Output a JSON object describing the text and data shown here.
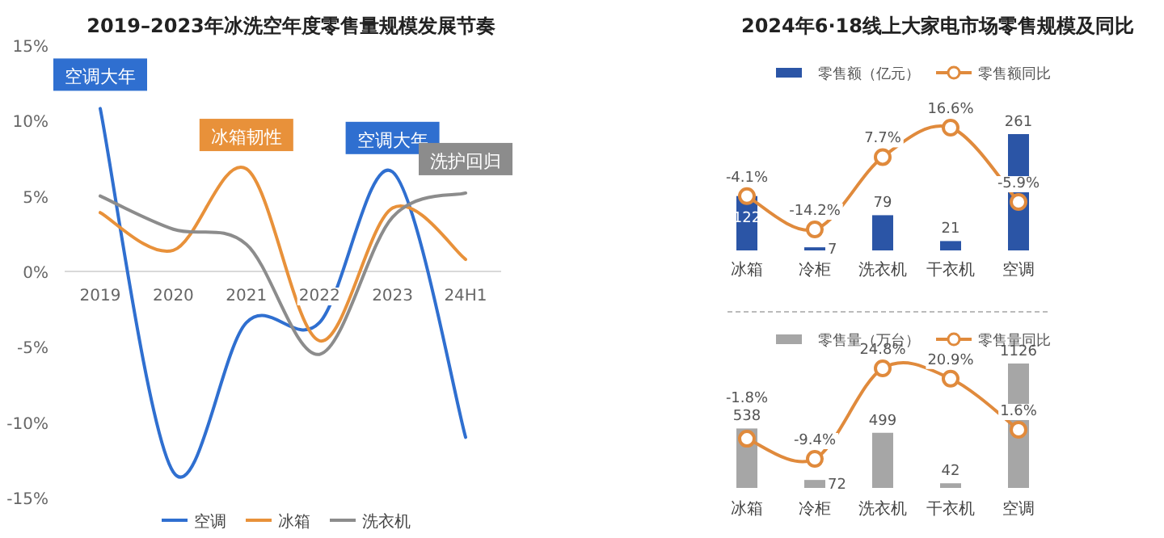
{
  "chart_data": [
    {
      "type": "line",
      "title": "2019–2023年冰洗空年度零售量规模发展节奏",
      "categories": [
        "2019",
        "2020",
        "2021",
        "2022",
        "2023",
        "24H1"
      ],
      "series": [
        {
          "name": "空调",
          "color": "#2f6fd0",
          "values": [
            10.8,
            -13.3,
            -3.4,
            -3.4,
            6.6,
            -11.0
          ]
        },
        {
          "name": "冰箱",
          "color": "#e8913a",
          "values": [
            3.9,
            1.4,
            6.8,
            -4.6,
            4.2,
            0.8
          ]
        },
        {
          "name": "洗衣机",
          "color": "#8c8c8c",
          "values": [
            5.0,
            2.8,
            1.8,
            -5.5,
            3.6,
            5.2
          ]
        }
      ],
      "ylim": [
        -15,
        15
      ],
      "yticks": [
        {
          "value": -15,
          "label": "-15%"
        },
        {
          "value": -10,
          "label": "-10%"
        },
        {
          "value": -5,
          "label": "-5%"
        },
        {
          "value": 0,
          "label": "0%"
        },
        {
          "value": 5,
          "label": "5%"
        },
        {
          "value": 10,
          "label": "10%"
        },
        {
          "value": 15,
          "label": "15%"
        }
      ],
      "legend": "bottom",
      "annotations": [
        {
          "text": "空调大年",
          "x": "2019",
          "y": 10.8
        },
        {
          "text": "冰箱韧性",
          "x": "2021",
          "y": 6.8
        },
        {
          "text": "空调大年",
          "x": "2023",
          "y": 6.6
        },
        {
          "text": "洗护回归",
          "x": "24H1",
          "y": 5.2
        }
      ]
    },
    {
      "type": "bar",
      "title": "2024年6·18线上大家电市场零售规模及同比",
      "categories": [
        "冰箱",
        "冷柜",
        "洗衣机",
        "干衣机",
        "空调"
      ],
      "series": [
        {
          "name": "零售额（亿元）",
          "color": "#2b55a6",
          "values": [
            122,
            7,
            79,
            21,
            261
          ]
        },
        {
          "name": "零售额同比",
          "type": "line",
          "axis": "y2",
          "marker": "circle",
          "color": "#e08a3c",
          "values": [
            -4.1,
            -14.2,
            7.7,
            16.6,
            -5.9
          ],
          "value_labels": [
            "-4.1%",
            "-14.2%",
            "7.7%",
            "16.6%",
            "-5.9%"
          ]
        }
      ],
      "data_labels": true,
      "legend": "top"
    },
    {
      "type": "bar",
      "categories": [
        "冰箱",
        "冷柜",
        "洗衣机",
        "干衣机",
        "空调"
      ],
      "series": [
        {
          "name": "零售量（万台）",
          "color": "#a6a6a6",
          "values": [
            538,
            72,
            499,
            42,
            1126
          ]
        },
        {
          "name": "零售量同比",
          "type": "line",
          "axis": "y2",
          "marker": "circle",
          "color": "#e08a3c",
          "values": [
            -1.8,
            -9.4,
            24.8,
            20.9,
            1.6
          ],
          "value_labels": [
            "-1.8%",
            "-9.4%",
            "24.8%",
            "20.9%",
            "1.6%"
          ]
        }
      ],
      "data_labels": true,
      "legend": "top"
    }
  ]
}
